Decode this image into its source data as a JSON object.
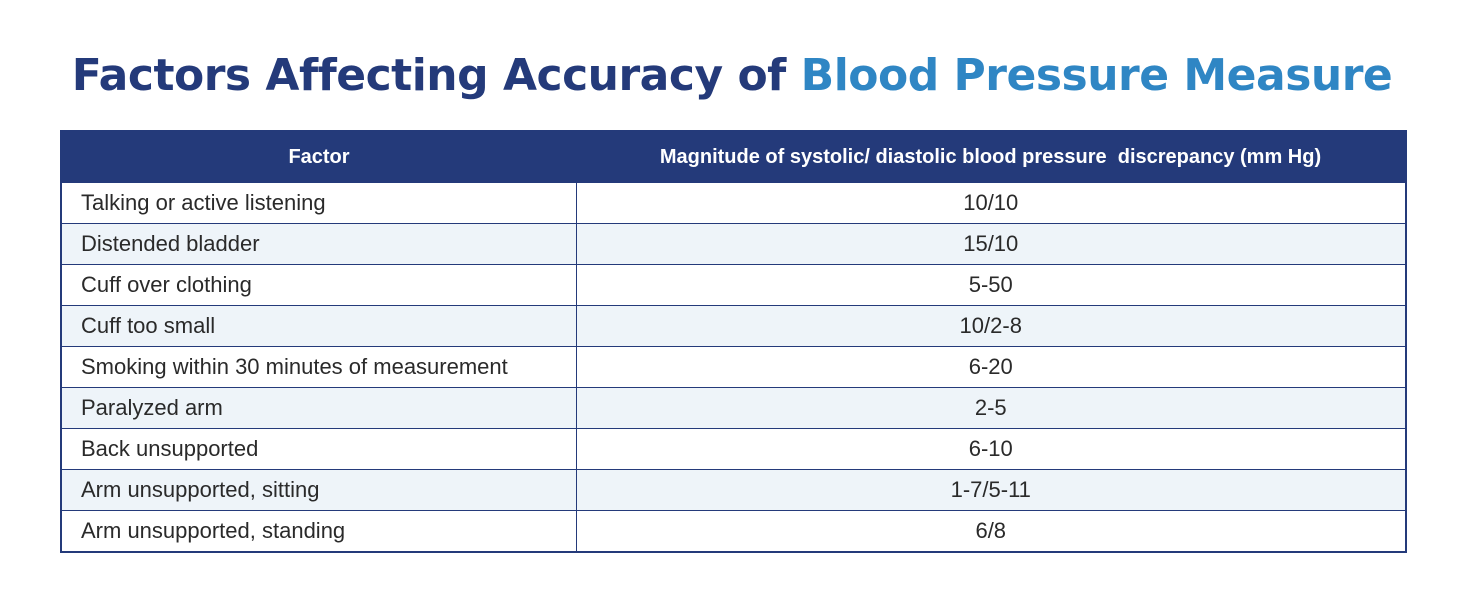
{
  "title": {
    "part1": "Factors Affecting Accuracy of ",
    "part2": "Blood Pressure Measure"
  },
  "table": {
    "headers": {
      "factor": "Factor",
      "magnitude": "Magnitude of systolic/ diastolic blood pressure  discrepancy (mm Hg)"
    },
    "rows": [
      {
        "factor": "Talking or active listening",
        "magnitude": "10/10"
      },
      {
        "factor": "Distended bladder",
        "magnitude": "15/10"
      },
      {
        "factor": "Cuff over clothing",
        "magnitude": "5-50"
      },
      {
        "factor": "Cuff too small",
        "magnitude": "10/2-8"
      },
      {
        "factor": "Smoking within 30 minutes of measurement",
        "magnitude": "6-20"
      },
      {
        "factor": "Paralyzed arm",
        "magnitude": "2-5"
      },
      {
        "factor": "Back unsupported",
        "magnitude": "6-10"
      },
      {
        "factor": "Arm unsupported, sitting",
        "magnitude": "1-7/5-11"
      },
      {
        "factor": "Arm unsupported, standing",
        "magnitude": "6/8"
      }
    ]
  },
  "colors": {
    "title_dark": "#243a7a",
    "title_accent": "#2f86c4",
    "header_bg": "#243a7a",
    "row_alt_bg": "#eef4f9"
  }
}
